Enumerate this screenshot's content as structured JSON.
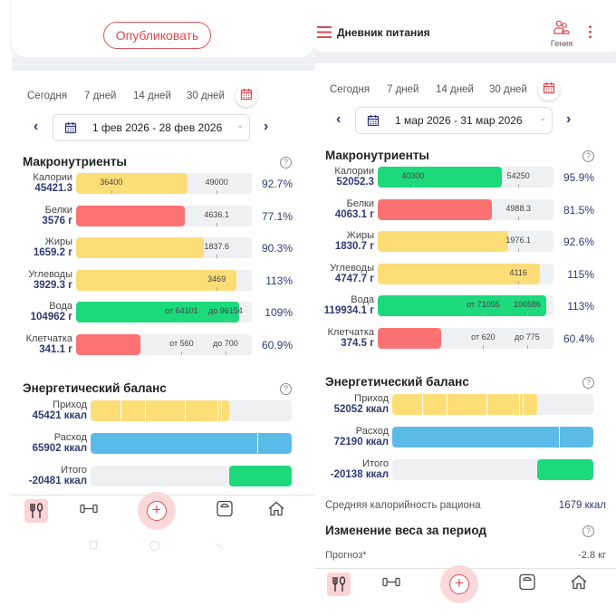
{
  "colors": {
    "yellow": "#fddd76",
    "red": "#fc7272",
    "green": "#1cd97c",
    "blue": "#5bbbe8",
    "navy": "#2f3b73",
    "accent": "#e0484e"
  },
  "left": {
    "publish_label": "Опубликовать",
    "tabs": [
      "Сегодня",
      "7 дней",
      "14 дней",
      "30 дней"
    ],
    "date_range": "1 фев 2026 - 28 фев 2026",
    "macros_title": "Макронутриенты",
    "macros": [
      {
        "name": "Калории",
        "value": "45421.3",
        "color": "yellow",
        "fill": 0.635,
        "markers": [
          "36400",
          "49000"
        ],
        "pct": "92.7%"
      },
      {
        "name": "Белки",
        "value": "3576 г",
        "color": "red",
        "fill": 0.62,
        "markers": [
          "4636.1"
        ],
        "pct": "77.1%"
      },
      {
        "name": "Жиры",
        "value": "1659.2 г",
        "color": "yellow",
        "fill": 0.725,
        "markers": [
          "1837.6"
        ],
        "pct": "90.3%"
      },
      {
        "name": "Углеводы",
        "value": "3929.3 г",
        "color": "yellow",
        "fill": 0.91,
        "markers": [
          "3469"
        ],
        "pct": "113%"
      },
      {
        "name": "Вода",
        "value": "104962 г",
        "color": "green",
        "fill": 0.93,
        "markers": [
          "от 64101",
          "до 96154"
        ],
        "pct": "109%"
      },
      {
        "name": "Клетчатка",
        "value": "341.1 г",
        "color": "red",
        "fill": 0.365,
        "markers": [
          "от 560",
          "до 700"
        ],
        "pct": "60.9%"
      }
    ],
    "energy_title": "Энергетический баланс",
    "energy": [
      {
        "name": "Приход",
        "value": "45421 ккал",
        "color": "yellow",
        "fill": 0.69
      },
      {
        "name": "Расход",
        "value": "65902 ккал",
        "color": "blue",
        "fill": 1
      },
      {
        "name": "Итого",
        "value": "-20481 ккал",
        "color": "green",
        "fill": 0.31
      }
    ]
  },
  "right": {
    "header_title": "Дневник питания",
    "profile_label": "Гения",
    "tabs": [
      "Сегодня",
      "7 дней",
      "14 дней",
      "30 дней"
    ],
    "date_range": "1 мар 2026 - 31 мар 2026",
    "macros_title": "Макронутриенты",
    "macros": [
      {
        "name": "Калории",
        "value": "52052.3",
        "color": "green",
        "fill": 0.705,
        "markers": [
          "40300",
          "54250"
        ],
        "pct": "95.9%"
      },
      {
        "name": "Белки",
        "value": "4063.1 г",
        "color": "red",
        "fill": 0.65,
        "markers": [
          "4988.3"
        ],
        "pct": "81.5%"
      },
      {
        "name": "Жиры",
        "value": "1830.7 г",
        "color": "yellow",
        "fill": 0.74,
        "markers": [
          "1976.1"
        ],
        "pct": "92.6%"
      },
      {
        "name": "Углеводы",
        "value": "4747.7 г",
        "color": "yellow",
        "fill": 0.925,
        "markers": [
          "4116"
        ],
        "pct": "115%"
      },
      {
        "name": "Вода",
        "value": "119934.1 г",
        "color": "green",
        "fill": 0.96,
        "markers": [
          "от 71055",
          "106586"
        ],
        "pct": "113%"
      },
      {
        "name": "Клетчатка",
        "value": "374.5 г",
        "color": "red",
        "fill": 0.36,
        "markers": [
          "от 620",
          "до 775"
        ],
        "pct": "60.4%"
      }
    ],
    "energy_title": "Энергетический баланс",
    "energy": [
      {
        "name": "Приход",
        "value": "52052 ккал",
        "color": "yellow",
        "fill": 0.72
      },
      {
        "name": "Расход",
        "value": "72190 ккал",
        "color": "blue",
        "fill": 1
      },
      {
        "name": "Итого",
        "value": "-20138 ккал",
        "color": "green",
        "fill": 0.28
      }
    ],
    "avg_label": "Средняя калорийность рациона",
    "avg_value": "1679 ккал",
    "weight_title": "Изменение веса за период",
    "forecast_label": "Прогноз*",
    "forecast_value": "-2.8 кг"
  }
}
